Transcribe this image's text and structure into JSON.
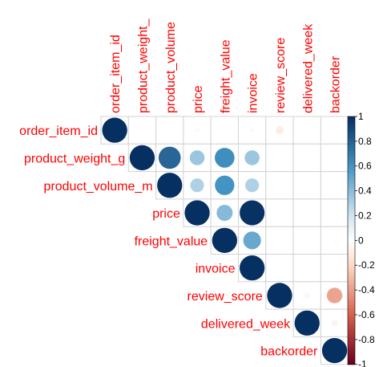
{
  "chart_data": {
    "type": "heatmap",
    "style": "upper-triangle circle correlation plot",
    "variables": [
      "order_item_id",
      "product_weight_g",
      "product_volume_m",
      "price",
      "freight_value",
      "invoice",
      "review_score",
      "delivered_week",
      "backorder"
    ],
    "top_labels": [
      "order_item_id",
      "product_weight_",
      "product_volume",
      "price",
      "freight_value",
      "invoice",
      "review_score",
      "delivered_week",
      "backorder"
    ],
    "matrix": [
      [
        1,
        0.0,
        0.0,
        0.03,
        0.01,
        0.03,
        -0.1,
        0.0,
        0.0
      ],
      [
        0.0,
        1,
        0.78,
        0.35,
        0.62,
        0.35,
        0.0,
        0.0,
        0.01
      ],
      [
        0.0,
        0.78,
        1,
        0.3,
        0.6,
        0.3,
        0.0,
        0.0,
        0.01
      ],
      [
        0.03,
        0.35,
        0.3,
        1,
        0.41,
        0.99,
        0.0,
        0.0,
        0.01
      ],
      [
        0.01,
        0.62,
        0.6,
        0.41,
        1,
        0.5,
        0.02,
        0.0,
        0.02
      ],
      [
        0.03,
        0.35,
        0.3,
        0.99,
        0.5,
        1,
        0.0,
        0.0,
        0.01
      ],
      [
        -0.1,
        0.0,
        0.0,
        0.0,
        0.02,
        0.0,
        1,
        -0.05,
        -0.38
      ],
      [
        0.0,
        0.0,
        0.0,
        0.0,
        0.0,
        0.0,
        -0.05,
        1,
        -0.06
      ],
      [
        0.0,
        0.01,
        0.01,
        0.01,
        0.02,
        0.01,
        -0.38,
        -0.06,
        1
      ]
    ],
    "colorbar": {
      "range": [
        -1,
        1
      ],
      "tick_labels": [
        "1",
        "0.8",
        "0.6",
        "0.4",
        "0.2",
        "0",
        "-0.2",
        "-0.4",
        "-0.6",
        "-0.8",
        "-1"
      ],
      "colors": {
        "neg_strong": "#67001f",
        "neg_mid": "#d6604d",
        "neg_light": "#fddbc7",
        "neutral": "#ffffff",
        "pos_light": "#d1e5f0",
        "pos_mid": "#4393c3",
        "pos_strong": "#053061"
      }
    },
    "label_color": "#ff0000",
    "grid_color": "#d3d3d3",
    "grid": true,
    "legend": "right"
  }
}
